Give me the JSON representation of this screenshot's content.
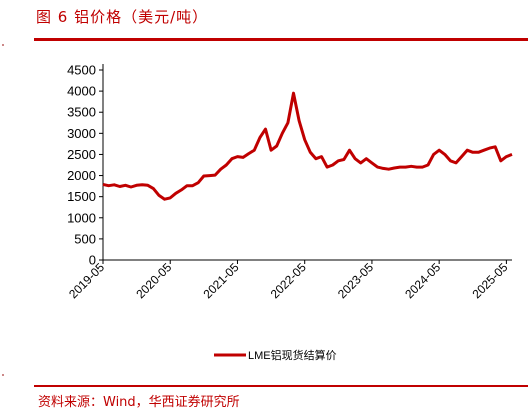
{
  "figure": {
    "title": "图 6  铝价格（美元/吨）",
    "source": "资料来源：Wind，华西证券研究所",
    "accent_color": "#c00000",
    "line_color": "#c00000"
  },
  "chart_data": {
    "type": "line",
    "title": "",
    "xlabel": "",
    "ylabel": "",
    "ylim": [
      0,
      4500
    ],
    "yticks": [
      0,
      500,
      1000,
      1500,
      2000,
      2500,
      3000,
      3500,
      4000,
      4500
    ],
    "x_tick_labels": [
      "2019-05",
      "2020-05",
      "2021-05",
      "2022-05",
      "2023-05",
      "2024-05",
      "2025-05"
    ],
    "x_range": [
      "2019-05",
      "2025-06"
    ],
    "legend_position": "bottom-center",
    "grid": false,
    "series": [
      {
        "name": "LME铝现货结算价",
        "color": "#c00000",
        "points": [
          [
            "2019-05",
            1790
          ],
          [
            "2019-06",
            1760
          ],
          [
            "2019-07",
            1780
          ],
          [
            "2019-08",
            1740
          ],
          [
            "2019-09",
            1770
          ],
          [
            "2019-10",
            1730
          ],
          [
            "2019-11",
            1770
          ],
          [
            "2019-12",
            1780
          ],
          [
            "2020-01",
            1770
          ],
          [
            "2020-02",
            1690
          ],
          [
            "2020-03",
            1530
          ],
          [
            "2020-04",
            1440
          ],
          [
            "2020-05",
            1470
          ],
          [
            "2020-06",
            1580
          ],
          [
            "2020-07",
            1660
          ],
          [
            "2020-08",
            1760
          ],
          [
            "2020-09",
            1760
          ],
          [
            "2020-10",
            1830
          ],
          [
            "2020-11",
            1990
          ],
          [
            "2020-12",
            2000
          ],
          [
            "2021-01",
            2010
          ],
          [
            "2021-02",
            2150
          ],
          [
            "2021-03",
            2250
          ],
          [
            "2021-04",
            2400
          ],
          [
            "2021-05",
            2450
          ],
          [
            "2021-06",
            2430
          ],
          [
            "2021-07",
            2520
          ],
          [
            "2021-08",
            2600
          ],
          [
            "2021-09",
            2900
          ],
          [
            "2021-10",
            3100
          ],
          [
            "2021-11",
            2600
          ],
          [
            "2021-12",
            2700
          ],
          [
            "2022-01",
            3000
          ],
          [
            "2022-02",
            3250
          ],
          [
            "2022-03",
            3950
          ],
          [
            "2022-04",
            3300
          ],
          [
            "2022-05",
            2850
          ],
          [
            "2022-06",
            2550
          ],
          [
            "2022-07",
            2400
          ],
          [
            "2022-08",
            2450
          ],
          [
            "2022-09",
            2200
          ],
          [
            "2022-10",
            2250
          ],
          [
            "2022-11",
            2350
          ],
          [
            "2022-12",
            2380
          ],
          [
            "2023-01",
            2600
          ],
          [
            "2023-02",
            2400
          ],
          [
            "2023-03",
            2300
          ],
          [
            "2023-04",
            2400
          ],
          [
            "2023-05",
            2300
          ],
          [
            "2023-06",
            2200
          ],
          [
            "2023-07",
            2170
          ],
          [
            "2023-08",
            2150
          ],
          [
            "2023-09",
            2180
          ],
          [
            "2023-10",
            2200
          ],
          [
            "2023-11",
            2200
          ],
          [
            "2023-12",
            2220
          ],
          [
            "2024-01",
            2200
          ],
          [
            "2024-02",
            2200
          ],
          [
            "2024-03",
            2250
          ],
          [
            "2024-04",
            2500
          ],
          [
            "2024-05",
            2600
          ],
          [
            "2024-06",
            2500
          ],
          [
            "2024-07",
            2350
          ],
          [
            "2024-08",
            2300
          ],
          [
            "2024-09",
            2450
          ],
          [
            "2024-10",
            2600
          ],
          [
            "2024-11",
            2550
          ],
          [
            "2024-12",
            2550
          ],
          [
            "2025-01",
            2600
          ],
          [
            "2025-02",
            2650
          ],
          [
            "2025-03",
            2680
          ],
          [
            "2025-04",
            2350
          ],
          [
            "2025-05",
            2450
          ],
          [
            "2025-06",
            2500
          ]
        ]
      }
    ]
  }
}
